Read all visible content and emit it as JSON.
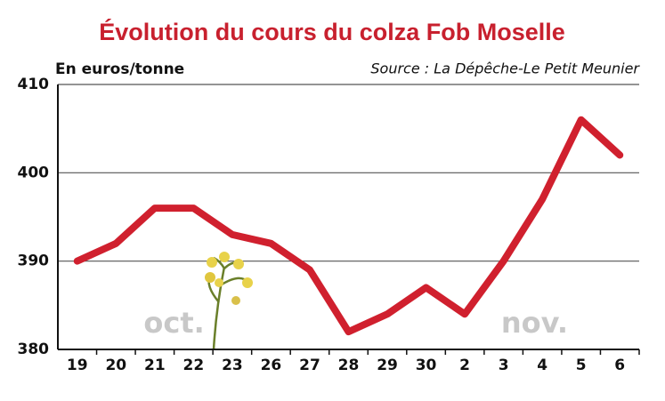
{
  "chart_data": {
    "type": "line",
    "title": "Évolution du cours du colza Fob Moselle",
    "y_label": "En euros/tonne",
    "source": "Source : La Dépêche-Le Petit Meunier",
    "annotations": [
      "oct.",
      "nov."
    ],
    "categories": [
      "19",
      "20",
      "21",
      "22",
      "23",
      "26",
      "27",
      "28",
      "29",
      "30",
      "2",
      "3",
      "4",
      "5",
      "6"
    ],
    "values": [
      390,
      392,
      396,
      396,
      393,
      392,
      389,
      382,
      384,
      387,
      384,
      390,
      397,
      406,
      402
    ],
    "color": "#d0202e",
    "ylim": [
      380,
      410
    ],
    "yticks": [
      380,
      390,
      400,
      410
    ],
    "grid": true
  }
}
